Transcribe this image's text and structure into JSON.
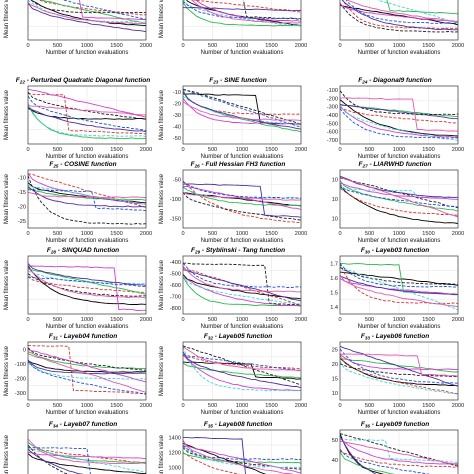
{
  "figure": {
    "xlabel": "Number of function evaluations",
    "ylabel": "Mean fitness value"
  },
  "chart_data": [
    {
      "type": "line",
      "title": "",
      "title_sub": "",
      "xticks": [
        "500",
        "1000",
        "1500",
        "2000"
      ],
      "yticks": [],
      "log": false,
      "cut": "top",
      "xlabel_shown": true,
      "ylabel_shown": true
    },
    {
      "type": "line",
      "title": "",
      "title_sub": "",
      "xticks": [
        "500",
        "1000",
        "1500",
        "2000"
      ],
      "yticks": [],
      "log": false,
      "cut": "top",
      "xlabel_shown": true,
      "ylabel_shown": true
    },
    {
      "type": "line",
      "title": "",
      "title_sub": "",
      "xticks": [
        "500",
        "1000",
        "1500",
        "2000"
      ],
      "yticks": [],
      "log": true,
      "cut": "top",
      "xlabel_shown": true,
      "ylabel_shown": false
    },
    {
      "type": "line",
      "title": "F",
      "title_sub": "22",
      "title_rest": " - Perturbed Quadratic Diagonal function",
      "xticks": [
        "500",
        "1000",
        "1500",
        "2000"
      ],
      "yticks": [],
      "log": false,
      "xlabel_shown": true,
      "ylabel_shown": true
    },
    {
      "type": "line",
      "title": "F",
      "title_sub": "23",
      "title_rest": " - SINE function",
      "xticks": [
        "500",
        "1000",
        "1500",
        "2000"
      ],
      "yticks": [
        "-10",
        "-20",
        "-30",
        "-40",
        "-50"
      ],
      "log": false,
      "xlabel_shown": true,
      "ylabel_shown": true
    },
    {
      "type": "line",
      "title": "F",
      "title_sub": "24",
      "title_rest": " - Diagonal9 function",
      "xticks": [
        "500",
        "1000",
        "1500",
        "2000"
      ],
      "yticks": [
        "-100",
        "-200",
        "-300",
        "-400",
        "-500",
        "-600",
        "-700"
      ],
      "log": false,
      "xlabel_shown": true,
      "ylabel_shown": false
    },
    {
      "type": "line",
      "title": "F",
      "title_sub": "25",
      "title_rest": " - COSINE function",
      "xticks": [
        "500",
        "1000",
        "1500",
        "2000"
      ],
      "yticks": [
        "-10",
        "-15",
        "-20",
        "-25"
      ],
      "log": false,
      "xlabel_shown": true,
      "ylabel_shown": true
    },
    {
      "type": "line",
      "title": "F",
      "title_sub": "26",
      "title_rest": " - Full Hessian FH3 function",
      "xticks": [
        "500",
        "1000",
        "1500",
        "2000"
      ],
      "yticks": [
        "-50",
        "-100",
        "-150"
      ],
      "log": false,
      "xlabel_shown": true,
      "ylabel_shown": true
    },
    {
      "type": "line",
      "title": "F",
      "title_sub": "27",
      "title_rest": " - LIARWHD function",
      "xticks": [
        "500",
        "1000",
        "1500",
        "2000"
      ],
      "yticks": [
        "10",
        "10",
        "10"
      ],
      "log": true,
      "xlabel_shown": true,
      "ylabel_shown": false
    },
    {
      "type": "line",
      "title": "F",
      "title_sub": "28",
      "title_rest": " - SINQUAD function",
      "xticks": [
        "500",
        "1000",
        "1500",
        "2000"
      ],
      "yticks": [],
      "log": false,
      "xlabel_shown": true,
      "ylabel_shown": true
    },
    {
      "type": "line",
      "title": "F",
      "title_sub": "29",
      "title_rest": " - Styblinski - Tang function",
      "xticks": [
        "500",
        "1000",
        "1500",
        "2000"
      ],
      "yticks": [
        "-400",
        "-500",
        "-600",
        "-700",
        "-800"
      ],
      "log": false,
      "xlabel_shown": true,
      "ylabel_shown": true
    },
    {
      "type": "line",
      "title": "F",
      "title_sub": "30",
      "title_rest": " - Layeb03 function",
      "xticks": [
        "500",
        "1000",
        "1500",
        "2000"
      ],
      "yticks": [
        "1.7",
        "1.6",
        "1.5",
        "1.4"
      ],
      "log": false,
      "xlabel_shown": true,
      "ylabel_shown": false
    },
    {
      "type": "line",
      "title": "F",
      "title_sub": "31",
      "title_rest": " - Layeb04 function",
      "xticks": [
        "500",
        "1000",
        "1500",
        "2000"
      ],
      "yticks": [
        "0",
        "-100",
        "-200",
        "-300"
      ],
      "log": false,
      "xlabel_shown": true,
      "ylabel_shown": true
    },
    {
      "type": "line",
      "title": "F",
      "title_sub": "32",
      "title_rest": " - Layeb05 function",
      "xticks": [
        "500",
        "1000",
        "1500",
        "2000"
      ],
      "yticks": [],
      "log": false,
      "xlabel_shown": true,
      "ylabel_shown": true
    },
    {
      "type": "line",
      "title": "F",
      "title_sub": "33",
      "title_rest": " - Layeb06 function",
      "xticks": [
        "500",
        "1000",
        "1500",
        "2000"
      ],
      "yticks": [
        "25",
        "20",
        "15",
        "10"
      ],
      "log": false,
      "xlabel_shown": true,
      "ylabel_shown": false
    },
    {
      "type": "line",
      "title": "F",
      "title_sub": "34",
      "title_rest": " - Layeb07 function",
      "xticks": [],
      "yticks": [],
      "log": false,
      "cut": "bottom",
      "xlabel_shown": false,
      "ylabel_shown": true
    },
    {
      "type": "line",
      "title": "F",
      "title_sub": "35",
      "title_rest": " - Layeb08 function",
      "xticks": [],
      "yticks": [
        "1400",
        "1200",
        "1000",
        "800"
      ],
      "log": false,
      "cut": "bottom",
      "xlabel_shown": false,
      "ylabel_shown": true
    },
    {
      "type": "line",
      "title": "F",
      "title_sub": "36",
      "title_rest": " - Layeb09 function",
      "xticks": [],
      "yticks": [
        "50",
        "40",
        "30"
      ],
      "log": false,
      "cut": "bottom",
      "xlabel_shown": false,
      "ylabel_shown": false
    }
  ]
}
